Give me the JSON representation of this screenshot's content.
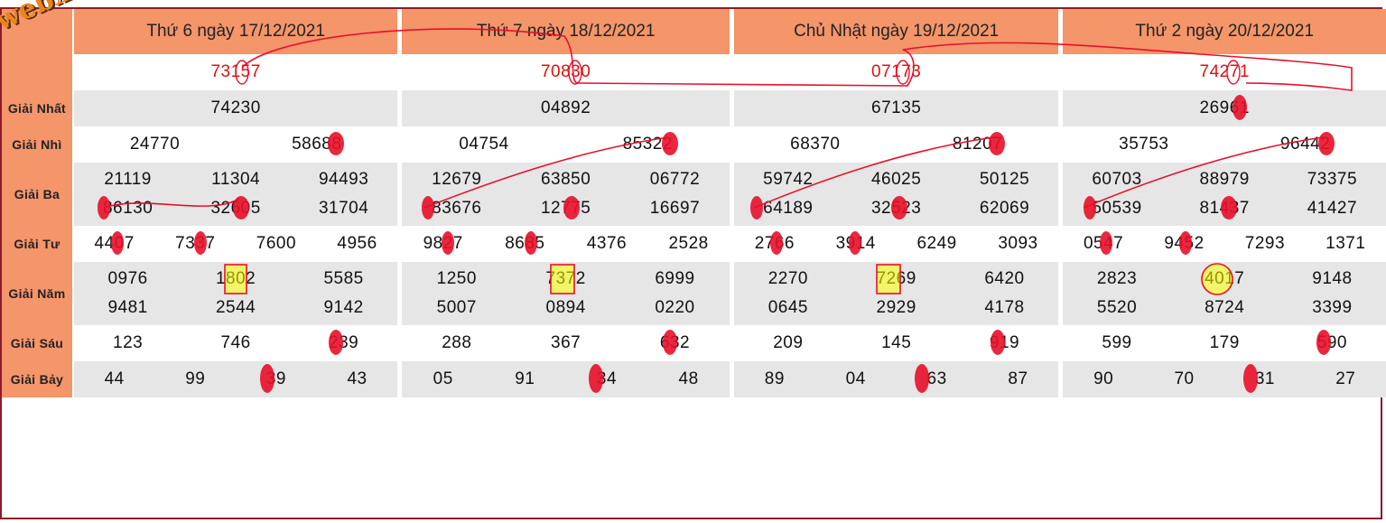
{
  "logo_text": "webxoso.net",
  "days": [
    {
      "title": "Thứ 6 ngày 17/12/2021",
      "db": "73157",
      "g1": [
        "74230"
      ],
      "g2": [
        "24770",
        "58688"
      ],
      "g3": [
        "21119",
        "11304",
        "94493",
        "86130",
        "32605",
        "31704"
      ],
      "g4": [
        "4407",
        "7337",
        "7600",
        "4956"
      ],
      "g5": [
        "0976",
        "1802",
        "5585",
        "9481",
        "2544",
        "9142"
      ],
      "g6": [
        "123",
        "746",
        "239"
      ],
      "g7": [
        "44",
        "99",
        "39",
        "43"
      ]
    },
    {
      "title": "Thứ 7 ngày 18/12/2021",
      "db": "70830",
      "g1": [
        "04892"
      ],
      "g2": [
        "04754",
        "85322"
      ],
      "g3": [
        "12679",
        "63850",
        "06772",
        "83676",
        "12775",
        "16697"
      ],
      "g4": [
        "9827",
        "8685",
        "4376",
        "2528"
      ],
      "g5": [
        "1250",
        "7372",
        "6999",
        "5007",
        "0894",
        "0220"
      ],
      "g6": [
        "288",
        "367",
        "632"
      ],
      "g7": [
        "05",
        "91",
        "34",
        "48"
      ]
    },
    {
      "title": "Chủ Nhật ngày 19/12/2021",
      "db": "07173",
      "g1": [
        "67135"
      ],
      "g2": [
        "68370",
        "81207"
      ],
      "g3": [
        "59742",
        "46025",
        "50125",
        "64189",
        "32523",
        "62069"
      ],
      "g4": [
        "2766",
        "3914",
        "6249",
        "3093"
      ],
      "g5": [
        "2270",
        "7269",
        "6420",
        "0645",
        "2929",
        "4178"
      ],
      "g6": [
        "209",
        "145",
        "919"
      ],
      "g7": [
        "89",
        "04",
        "63",
        "87"
      ]
    },
    {
      "title": "Thứ 2 ngày 20/12/2021",
      "db": "74271",
      "g1": [
        "26961"
      ],
      "g2": [
        "35753",
        "96442"
      ],
      "g3": [
        "60703",
        "88979",
        "73375",
        "50539",
        "81437",
        "41427"
      ],
      "g4": [
        "0547",
        "9452",
        "7293",
        "1371"
      ],
      "g5": [
        "2823",
        "4017",
        "9148",
        "5520",
        "8724",
        "3399"
      ],
      "g6": [
        "599",
        "179",
        "590"
      ],
      "g7": [
        "90",
        "70",
        "31",
        "27"
      ]
    }
  ],
  "labels": {
    "g1": "Giải Nhất",
    "g2": "Giải Nhì",
    "g3": "Giải Ba",
    "g4": "Giải Tư",
    "g5": "Giải Năm",
    "g6": "Giải Sáu",
    "g7": "Giải Bảy"
  },
  "colors": {
    "header": "#f4956a",
    "row_alt": "#e6e6e6",
    "db_text": "#e01010",
    "annotation": "#e8102a",
    "highlight": "#ffff00",
    "border": "#8b1a2b"
  }
}
